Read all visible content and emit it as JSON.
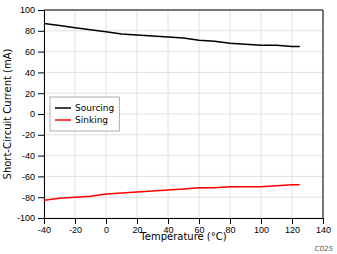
{
  "chart_data": {
    "type": "line",
    "x": [
      -40,
      -30,
      -20,
      -10,
      0,
      10,
      20,
      30,
      40,
      50,
      60,
      70,
      80,
      90,
      100,
      110,
      120,
      125
    ],
    "series": [
      {
        "name": "Sourcing",
        "color": "#000000",
        "values": [
          87,
          85,
          83,
          81,
          79,
          77,
          76,
          75,
          74,
          73,
          71,
          70,
          68,
          67,
          66,
          66,
          65,
          65
        ]
      },
      {
        "name": "Sinking",
        "color": "#ff0000",
        "values": [
          -83,
          -81,
          -80,
          -79,
          -77,
          -76,
          -75,
          -74,
          -73,
          -72,
          -71,
          -71,
          -70,
          -70,
          -70,
          -69,
          -68,
          -68
        ]
      }
    ],
    "xlabel": "Temperature (°C)",
    "ylabel": "Short-Circuit Current (mA)",
    "xlim": [
      -40,
      140
    ],
    "ylim": [
      -100,
      100
    ],
    "xticks": [
      -40,
      -20,
      0,
      20,
      40,
      60,
      80,
      100,
      120,
      140
    ],
    "yticks": [
      -100,
      -80,
      -60,
      -40,
      -20,
      0,
      20,
      40,
      60,
      80,
      100
    ],
    "grid": true,
    "legend": "center left",
    "annotations": [
      "C025"
    ]
  }
}
